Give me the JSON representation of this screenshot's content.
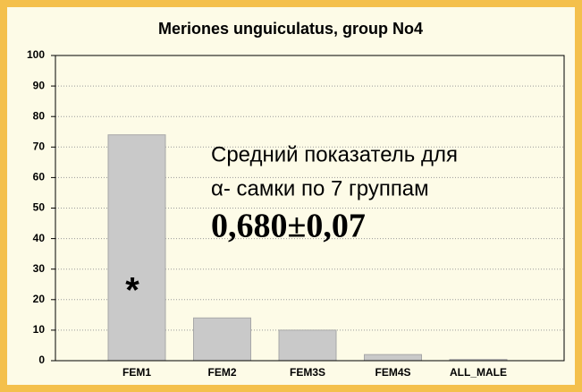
{
  "chart_data": {
    "type": "bar",
    "title": "Meriones unguiculatus, group No4",
    "categories": [
      "FEM1",
      "FEM2",
      "FEM3S",
      "FEM4S",
      "ALL_MALE"
    ],
    "values": [
      74,
      14,
      10,
      2,
      0.4
    ],
    "color": "#c9c9c9",
    "ylim": [
      0,
      100
    ],
    "yticks": [
      0,
      10,
      20,
      30,
      40,
      50,
      60,
      70,
      80,
      90,
      100
    ],
    "grid": true,
    "annotations": [
      "*",
      "Средний показатель для",
      "α- самки по 7 группам",
      "0,680±0,07"
    ]
  }
}
